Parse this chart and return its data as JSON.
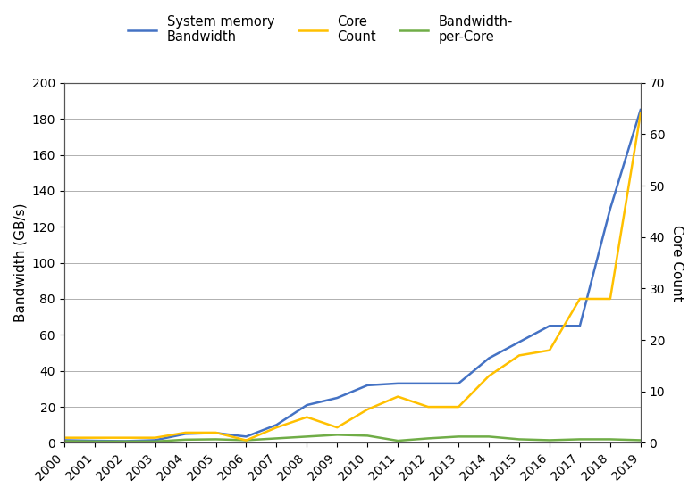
{
  "years": [
    2000,
    2001,
    2002,
    2003,
    2004,
    2005,
    2006,
    2007,
    2008,
    2009,
    2010,
    2011,
    2012,
    2013,
    2014,
    2015,
    2016,
    2017,
    2018,
    2019
  ],
  "bandwidth": [
    1.5,
    1.2,
    1.0,
    1.5,
    5.0,
    5.5,
    3.5,
    10.0,
    21.0,
    25.0,
    32.0,
    33.0,
    33.0,
    33.0,
    47.0,
    56.0,
    65.0,
    65.0,
    130.0,
    185.0
  ],
  "core_count": [
    1.0,
    1.0,
    1.0,
    1.0,
    2.0,
    2.0,
    0.5,
    3.0,
    5.0,
    3.0,
    6.5,
    9.0,
    7.0,
    7.0,
    13.0,
    17.0,
    18.0,
    28.0,
    28.0,
    64.0
  ],
  "bandwidth_per_core": [
    1.0,
    0.8,
    0.8,
    0.8,
    1.8,
    2.0,
    1.5,
    2.5,
    3.5,
    4.5,
    4.0,
    1.2,
    2.5,
    3.5,
    3.5,
    2.0,
    1.5,
    2.0,
    2.0,
    1.5
  ],
  "bandwidth_color": "#4472C4",
  "core_count_color": "#FFC000",
  "bpc_color": "#70AD47",
  "left_ylim": [
    0,
    200
  ],
  "right_ylim": [
    0,
    70
  ],
  "left_yticks": [
    0,
    20,
    40,
    60,
    80,
    100,
    120,
    140,
    160,
    180,
    200
  ],
  "right_yticks": [
    0,
    10,
    20,
    30,
    40,
    50,
    60,
    70
  ],
  "ylabel_left": "Bandwidth (GB/s)",
  "ylabel_right": "Core Count",
  "legend_labels": [
    "System memory\nBandwidth",
    "Core\nCount",
    "Bandwidth-\nper-Core"
  ],
  "background_color": "#ffffff",
  "grid_color": "#b0b0b0",
  "line_width": 1.8,
  "font_size": 11
}
